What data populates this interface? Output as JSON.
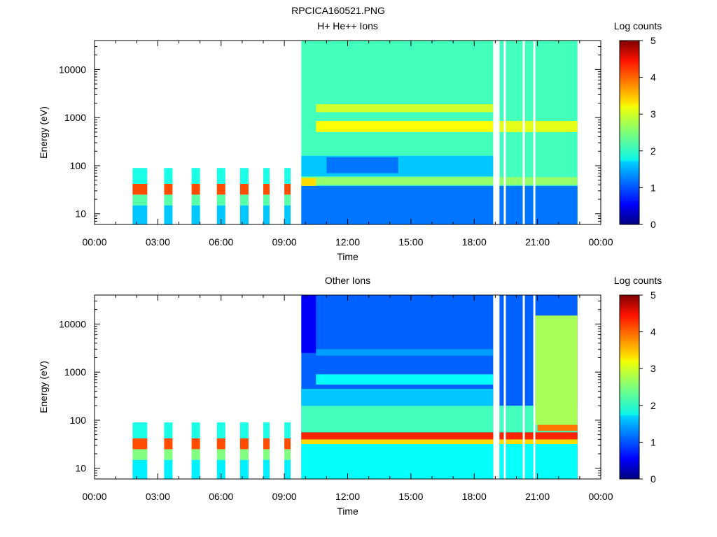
{
  "figure_title": "RPCICA160521.PNG",
  "chart_data": [
    {
      "type": "heatmap",
      "title": "H+ He++ Ions",
      "xlabel": "Time",
      "ylabel": "Energy (eV)",
      "x_ticks": [
        "00:00",
        "03:00",
        "06:00",
        "09:00",
        "12:00",
        "15:00",
        "18:00",
        "21:00",
        "00:00"
      ],
      "x_range_hours": [
        0,
        24
      ],
      "y_scale": "log",
      "y_ticks": [
        10,
        100,
        1000,
        10000
      ],
      "y_tick_labels": [
        "10",
        "100",
        "1000",
        "10000"
      ],
      "y_range": [
        6,
        40000
      ],
      "colorbar": {
        "label": "Log counts",
        "ticks": [
          "0",
          "1",
          "2",
          "3",
          "4",
          "5"
        ],
        "range": [
          0,
          5
        ]
      },
      "data_segments": [
        {
          "start_hour": 1.8,
          "end_hour": 2.5,
          "energy_max": 90
        },
        {
          "start_hour": 3.3,
          "end_hour": 3.7,
          "energy_max": 90
        },
        {
          "start_hour": 4.6,
          "end_hour": 5.0,
          "energy_max": 90
        },
        {
          "start_hour": 5.8,
          "end_hour": 6.2,
          "energy_max": 90
        },
        {
          "start_hour": 6.9,
          "end_hour": 7.3,
          "energy_max": 90
        },
        {
          "start_hour": 8.0,
          "end_hour": 8.3,
          "energy_max": 90
        },
        {
          "start_hour": 9.0,
          "end_hour": 9.3,
          "energy_max": 90
        },
        {
          "start_hour": 9.8,
          "end_hour": 18.9,
          "energy_max": 40000
        },
        {
          "start_hour": 19.2,
          "end_hour": 19.4,
          "energy_max": 40000
        },
        {
          "start_hour": 19.5,
          "end_hour": 20.3,
          "energy_max": 40000
        },
        {
          "start_hour": 20.4,
          "end_hour": 20.8,
          "energy_max": 40000
        },
        {
          "start_hour": 20.9,
          "end_hour": 22.9,
          "energy_max": 40000
        }
      ],
      "bands": [
        {
          "energy_min": 6,
          "energy_max": 40000,
          "start_hour": 9.8,
          "end_hour": 22.9,
          "log_counts": 2.2
        },
        {
          "energy_min": 6,
          "energy_max": 38,
          "start_hour": 9.8,
          "end_hour": 22.9,
          "log_counts": 1.2
        },
        {
          "energy_min": 60,
          "energy_max": 160,
          "start_hour": 9.8,
          "end_hour": 18.9,
          "log_counts": 1.6
        },
        {
          "energy_min": 70,
          "energy_max": 150,
          "start_hour": 11.0,
          "end_hour": 14.4,
          "log_counts": 1.2
        },
        {
          "energy_min": 40,
          "energy_max": 58,
          "start_hour": 9.8,
          "end_hour": 22.9,
          "log_counts": 2.6
        },
        {
          "energy_min": 38,
          "energy_max": 55,
          "start_hour": 9.8,
          "end_hour": 10.5,
          "log_counts": 3.3
        },
        {
          "energy_min": 500,
          "energy_max": 850,
          "start_hour": 10.5,
          "end_hour": 18.9,
          "log_counts": 3.1
        },
        {
          "energy_min": 500,
          "energy_max": 850,
          "start_hour": 19.2,
          "end_hour": 22.9,
          "log_counts": 3.0
        },
        {
          "energy_min": 1300,
          "energy_max": 1900,
          "start_hour": 10.5,
          "end_hour": 18.9,
          "log_counts": 2.9
        },
        {
          "energy_min": 6,
          "energy_max": 15,
          "start_hour": 1.8,
          "end_hour": 9.3,
          "log_counts": 1.6
        },
        {
          "energy_min": 15,
          "energy_max": 25,
          "start_hour": 1.8,
          "end_hour": 9.3,
          "log_counts": 2.3
        },
        {
          "energy_min": 25,
          "energy_max": 42,
          "start_hour": 1.8,
          "end_hour": 9.3,
          "log_counts": 4.0
        },
        {
          "energy_min": 42,
          "energy_max": 90,
          "start_hour": 1.8,
          "end_hour": 9.3,
          "log_counts": 2.0
        }
      ]
    },
    {
      "type": "heatmap",
      "title": "Other Ions",
      "xlabel": "Time",
      "ylabel": "Energy (eV)",
      "x_ticks": [
        "00:00",
        "03:00",
        "06:00",
        "09:00",
        "12:00",
        "15:00",
        "18:00",
        "21:00",
        "00:00"
      ],
      "x_range_hours": [
        0,
        24
      ],
      "y_scale": "log",
      "y_ticks": [
        10,
        100,
        1000,
        10000
      ],
      "y_tick_labels": [
        "10",
        "100",
        "1000",
        "10000"
      ],
      "y_range": [
        6,
        40000
      ],
      "colorbar": {
        "label": "Log counts",
        "ticks": [
          "0",
          "1",
          "2",
          "3",
          "4",
          "5"
        ],
        "range": [
          0,
          5
        ]
      },
      "data_segments": [
        {
          "start_hour": 1.8,
          "end_hour": 2.5,
          "energy_max": 90
        },
        {
          "start_hour": 3.3,
          "end_hour": 3.7,
          "energy_max": 90
        },
        {
          "start_hour": 4.6,
          "end_hour": 5.0,
          "energy_max": 90
        },
        {
          "start_hour": 5.8,
          "end_hour": 6.2,
          "energy_max": 90
        },
        {
          "start_hour": 6.9,
          "end_hour": 7.3,
          "energy_max": 90
        },
        {
          "start_hour": 8.0,
          "end_hour": 8.3,
          "energy_max": 90
        },
        {
          "start_hour": 9.0,
          "end_hour": 9.3,
          "energy_max": 90
        },
        {
          "start_hour": 9.8,
          "end_hour": 18.9,
          "energy_max": 40000
        },
        {
          "start_hour": 19.2,
          "end_hour": 19.4,
          "energy_max": 40000
        },
        {
          "start_hour": 19.5,
          "end_hour": 20.3,
          "energy_max": 40000
        },
        {
          "start_hour": 20.4,
          "end_hour": 20.8,
          "energy_max": 40000
        },
        {
          "start_hour": 20.9,
          "end_hour": 22.9,
          "energy_max": 40000
        }
      ],
      "bands": [
        {
          "energy_min": 6,
          "energy_max": 40000,
          "start_hour": 9.8,
          "end_hour": 22.9,
          "log_counts": 1.1
        },
        {
          "energy_min": 2500,
          "energy_max": 40000,
          "start_hour": 9.8,
          "end_hour": 10.5,
          "log_counts": 0.6
        },
        {
          "energy_min": 6,
          "energy_max": 32,
          "start_hour": 9.8,
          "end_hour": 22.9,
          "log_counts": 1.9
        },
        {
          "energy_min": 32,
          "energy_max": 40,
          "start_hour": 9.8,
          "end_hour": 22.9,
          "log_counts": 3.3
        },
        {
          "energy_min": 40,
          "energy_max": 56,
          "start_hour": 9.8,
          "end_hour": 22.9,
          "log_counts": 4.2
        },
        {
          "energy_min": 56,
          "energy_max": 200,
          "start_hour": 9.8,
          "end_hour": 22.9,
          "log_counts": 2.2
        },
        {
          "energy_min": 200,
          "energy_max": 450,
          "start_hour": 9.8,
          "end_hour": 18.9,
          "log_counts": 1.6
        },
        {
          "energy_min": 550,
          "energy_max": 900,
          "start_hour": 10.5,
          "end_hour": 18.9,
          "log_counts": 1.9
        },
        {
          "energy_min": 2200,
          "energy_max": 3000,
          "start_hour": 10.5,
          "end_hour": 18.9,
          "log_counts": 1.4
        },
        {
          "energy_min": 80,
          "energy_max": 15000,
          "start_hour": 20.9,
          "end_hour": 22.9,
          "log_counts": 2.7
        },
        {
          "energy_min": 60,
          "energy_max": 80,
          "start_hour": 21.0,
          "end_hour": 22.9,
          "log_counts": 3.8
        },
        {
          "energy_min": 6,
          "energy_max": 15,
          "start_hour": 1.8,
          "end_hour": 9.3,
          "log_counts": 1.8
        },
        {
          "energy_min": 15,
          "energy_max": 25,
          "start_hour": 1.8,
          "end_hour": 9.3,
          "log_counts": 2.5
        },
        {
          "energy_min": 25,
          "energy_max": 42,
          "start_hour": 1.8,
          "end_hour": 9.3,
          "log_counts": 4.0
        },
        {
          "energy_min": 42,
          "energy_max": 90,
          "start_hour": 1.8,
          "end_hour": 9.3,
          "log_counts": 2.0
        }
      ]
    }
  ]
}
